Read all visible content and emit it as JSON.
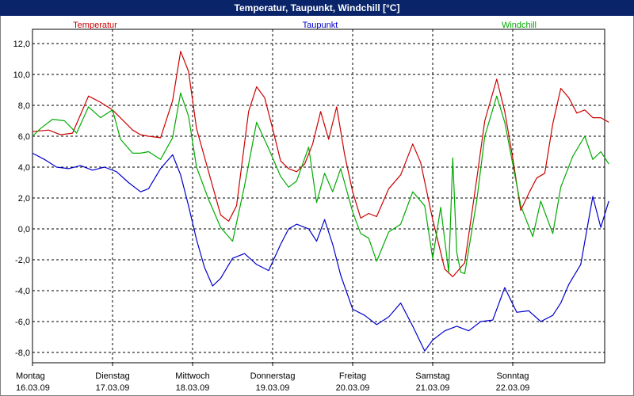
{
  "window": {
    "title": "Temperatur, Taupunkt, Windchill [°C]"
  },
  "chart_data": {
    "type": "line",
    "title": "Temperatur, Taupunkt, Windchill [°C]",
    "ylim": [
      -9,
      13
    ],
    "y_ticks": [
      {
        "value": 12,
        "label": "12,0"
      },
      {
        "value": 10,
        "label": "10,0"
      },
      {
        "value": 8,
        "label": "8,0"
      },
      {
        "value": 6,
        "label": "6,0"
      },
      {
        "value": 4,
        "label": "4,0"
      },
      {
        "value": 2,
        "label": "2,0"
      },
      {
        "value": 0,
        "label": "0,0"
      },
      {
        "value": -2,
        "label": "-2,0"
      },
      {
        "value": -4,
        "label": "-4,0"
      },
      {
        "value": -6,
        "label": "-6,0"
      },
      {
        "value": -8,
        "label": "-8,0"
      }
    ],
    "xlim": [
      0,
      7.25
    ],
    "x_ticks": [
      {
        "day": "Montag",
        "date": "16.03.09"
      },
      {
        "day": "Dienstag",
        "date": "17.03.09"
      },
      {
        "day": "Mittwoch",
        "date": "18.03.09"
      },
      {
        "day": "Donnerstag",
        "date": "19.03.09"
      },
      {
        "day": "Freitag",
        "date": "20.03.09"
      },
      {
        "day": "Samstag",
        "date": "21.03.09"
      },
      {
        "day": "Sonntag",
        "date": "22.03.09"
      }
    ],
    "grid": true,
    "legend": "top, spread horizontally",
    "series": [
      {
        "name": "Temperatur",
        "color": "#cc0000",
        "x": [
          0,
          0.2,
          0.35,
          0.5,
          0.7,
          0.85,
          1.0,
          1.25,
          1.35,
          1.45,
          1.6,
          1.75,
          1.85,
          1.95,
          2.05,
          2.2,
          2.35,
          2.45,
          2.55,
          2.7,
          2.8,
          2.9,
          3.0,
          3.1,
          3.2,
          3.3,
          3.4,
          3.5,
          3.6,
          3.7,
          3.8,
          3.9,
          4.0,
          4.1,
          4.2,
          4.3,
          4.45,
          4.6,
          4.75,
          4.85,
          5.0,
          5.15,
          5.25,
          5.4,
          5.55,
          5.65,
          5.8,
          5.9,
          6.0,
          6.1,
          6.2,
          6.3,
          6.4,
          6.5,
          6.6,
          6.7,
          6.8,
          6.9,
          7.0,
          7.1,
          7.2
        ],
        "values": [
          6.3,
          6.4,
          6.1,
          6.2,
          8.6,
          8.2,
          7.7,
          6.4,
          6.1,
          6.0,
          5.9,
          8.3,
          11.5,
          10.2,
          6.5,
          3.7,
          0.9,
          0.5,
          1.5,
          7.6,
          9.2,
          8.5,
          6.5,
          4.4,
          3.9,
          3.7,
          4.2,
          5.5,
          7.6,
          5.8,
          7.9,
          4.8,
          2.4,
          0.7,
          1.0,
          0.8,
          2.6,
          3.5,
          5.5,
          4.3,
          0.6,
          -2.6,
          -3.1,
          -2.2,
          3.2,
          7.0,
          9.7,
          7.6,
          4.6,
          1.2,
          2.3,
          3.3,
          3.6,
          6.8,
          9.1,
          8.5,
          7.5,
          7.7,
          7.2,
          7.2,
          6.9
        ]
      },
      {
        "name": "Taupunkt",
        "color": "#0000cc",
        "x": [
          0,
          0.15,
          0.3,
          0.45,
          0.6,
          0.75,
          0.9,
          1.05,
          1.2,
          1.35,
          1.45,
          1.6,
          1.75,
          1.85,
          1.95,
          2.05,
          2.15,
          2.25,
          2.35,
          2.5,
          2.65,
          2.8,
          2.95,
          3.1,
          3.2,
          3.3,
          3.45,
          3.55,
          3.65,
          3.75,
          3.85,
          4.0,
          4.15,
          4.3,
          4.45,
          4.6,
          4.75,
          4.9,
          5.0,
          5.15,
          5.3,
          5.45,
          5.6,
          5.75,
          5.9,
          6.05,
          6.2,
          6.35,
          6.5,
          6.6,
          6.7,
          6.85,
          7.0,
          7.1,
          7.2
        ],
        "values": [
          4.9,
          4.5,
          4.0,
          3.9,
          4.1,
          3.8,
          4.0,
          3.7,
          3.0,
          2.4,
          2.6,
          3.9,
          4.8,
          3.5,
          1.5,
          -0.7,
          -2.5,
          -3.7,
          -3.2,
          -1.9,
          -1.6,
          -2.3,
          -2.7,
          -1.0,
          0.0,
          0.3,
          0.0,
          -0.8,
          0.6,
          -1.0,
          -3.0,
          -5.2,
          -5.6,
          -6.2,
          -5.7,
          -4.8,
          -6.3,
          -7.9,
          -7.2,
          -6.6,
          -6.3,
          -6.6,
          -6.0,
          -5.9,
          -3.8,
          -5.4,
          -5.3,
          -6.0,
          -5.6,
          -4.8,
          -3.6,
          -2.3,
          2.1,
          0.1,
          1.8
        ]
      },
      {
        "name": "Windchill",
        "color": "#00aa00",
        "x": [
          0,
          0.1,
          0.25,
          0.4,
          0.55,
          0.7,
          0.85,
          1.0,
          1.1,
          1.25,
          1.35,
          1.45,
          1.6,
          1.75,
          1.85,
          1.95,
          2.05,
          2.2,
          2.35,
          2.5,
          2.65,
          2.8,
          2.95,
          3.1,
          3.2,
          3.3,
          3.45,
          3.55,
          3.65,
          3.75,
          3.85,
          4.0,
          4.1,
          4.2,
          4.3,
          4.45,
          4.6,
          4.75,
          4.9,
          5.0,
          5.1,
          5.2,
          5.25,
          5.3,
          5.35,
          5.4,
          5.55,
          5.65,
          5.8,
          5.9,
          6.0,
          6.1,
          6.25,
          6.35,
          6.5,
          6.6,
          6.75,
          6.9,
          7.0,
          7.1,
          7.2
        ],
        "values": [
          6.0,
          6.5,
          7.1,
          7.0,
          6.2,
          7.9,
          7.2,
          7.7,
          5.8,
          4.9,
          4.9,
          5.0,
          4.5,
          5.9,
          8.8,
          7.3,
          4.0,
          1.9,
          0.1,
          -0.8,
          2.8,
          6.9,
          5.2,
          3.4,
          2.7,
          3.1,
          5.3,
          1.7,
          3.6,
          2.4,
          3.9,
          1.1,
          -0.3,
          -0.6,
          -2.1,
          -0.2,
          0.3,
          2.4,
          1.5,
          -1.9,
          1.4,
          -2.8,
          4.6,
          -1.5,
          -2.8,
          -2.9,
          1.8,
          6.0,
          8.6,
          6.9,
          4.2,
          1.5,
          -0.5,
          1.8,
          -0.3,
          2.7,
          4.7,
          6.0,
          4.5,
          5.0,
          4.2
        ]
      }
    ]
  }
}
